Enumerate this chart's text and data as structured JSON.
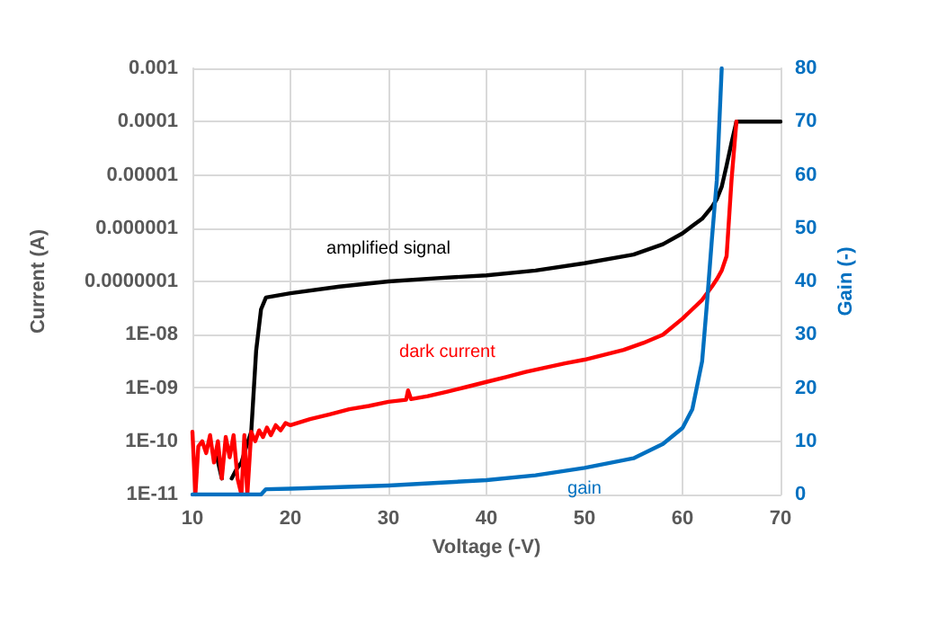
{
  "chart_data": {
    "type": "line",
    "xlabel": "Voltage (-V)",
    "ylabel": "Current (A)",
    "y2label": "Gain (-)",
    "log": "y",
    "grid": true,
    "marker": "none",
    "line_style": "solid",
    "xlim": [
      10,
      70
    ],
    "xticks": [
      10,
      20,
      30,
      40,
      50,
      60,
      70
    ],
    "ylim": [
      1e-11,
      0.001
    ],
    "yticks": [
      {
        "value": 1e-11,
        "label": "1E-11"
      },
      {
        "value": 1e-10,
        "label": "1E-10"
      },
      {
        "value": 1e-09,
        "label": "1E-09"
      },
      {
        "value": 1e-08,
        "label": "1E-08"
      },
      {
        "value": 1e-07,
        "label": "0.0000001"
      },
      {
        "value": 1e-06,
        "label": "0.000001"
      },
      {
        "value": 1e-05,
        "label": "0.00001"
      },
      {
        "value": 0.0001,
        "label": "0.0001"
      },
      {
        "value": 0.001,
        "label": "0.001"
      }
    ],
    "y2lim": [
      0,
      80
    ],
    "y2ticks": [
      0,
      10,
      20,
      30,
      40,
      50,
      60,
      70,
      80
    ],
    "series": [
      {
        "name": "amplified signal",
        "color": "#000000",
        "x": [
          12.5,
          13,
          13.5,
          14,
          14.5,
          15,
          15.5,
          16,
          16.5,
          17,
          17.5,
          20,
          25,
          30,
          35,
          40,
          45,
          50,
          55,
          58,
          60,
          61,
          62,
          63,
          63.5,
          64,
          64.5,
          65,
          65.5,
          70
        ],
        "values": [
          5e-11,
          2e-11,
          null,
          2e-11,
          3e-11,
          4e-11,
          8e-11,
          1.5e-10,
          5e-09,
          3e-08,
          5e-08,
          6e-08,
          8e-08,
          1e-07,
          1.15e-07,
          1.3e-07,
          1.6e-07,
          2.2e-07,
          3.2e-07,
          5e-07,
          8e-07,
          1.1e-06,
          1.5e-06,
          2.5e-06,
          3.5e-06,
          6e-06,
          1.5e-05,
          4e-05,
          0.0001,
          0.0001
        ]
      },
      {
        "name": "dark current",
        "color": "#ff0000",
        "x": [
          10,
          10.3,
          10.6,
          11,
          11.4,
          11.8,
          12.2,
          12.6,
          13,
          13.4,
          13.8,
          14.2,
          14.6,
          15,
          15.3,
          15.6,
          16,
          16.4,
          16.8,
          17.2,
          17.6,
          18,
          18.5,
          19,
          19.5,
          20,
          22,
          24,
          26,
          28,
          30,
          31.8,
          32,
          32.3,
          34,
          36,
          38,
          40,
          42,
          44,
          46,
          48,
          50,
          52,
          54,
          56,
          58,
          60,
          61,
          62,
          63,
          63.5,
          64,
          64.5,
          65,
          65.5
        ],
        "values": [
          1.5e-10,
          1e-11,
          8e-11,
          1e-10,
          6e-11,
          1.3e-10,
          4e-11,
          1e-10,
          2e-11,
          1.2e-10,
          5e-11,
          1.3e-10,
          2e-11,
          1e-11,
          1.3e-10,
          1e-11,
          1.5e-10,
          1e-10,
          1.6e-10,
          1.2e-10,
          1.8e-10,
          1.3e-10,
          2e-10,
          1.6e-10,
          2.2e-10,
          2e-10,
          2.6e-10,
          3.2e-10,
          4e-10,
          4.6e-10,
          5.5e-10,
          6e-10,
          9e-10,
          6.2e-10,
          7e-10,
          8.5e-10,
          1.05e-09,
          1.3e-09,
          1.6e-09,
          2e-09,
          2.4e-09,
          2.9e-09,
          3.4e-09,
          4.2e-09,
          5.2e-09,
          7e-09,
          1e-08,
          2e-08,
          3e-08,
          4.5e-08,
          8e-08,
          1.1e-07,
          1.6e-07,
          3e-07,
          8e-06,
          0.0001
        ]
      },
      {
        "name": "gain",
        "color": "#0070c0",
        "axis": "y2",
        "x": [
          10,
          17,
          17.5,
          20,
          25,
          30,
          35,
          40,
          45,
          50,
          55,
          58,
          60,
          61,
          62,
          62.5,
          63,
          63.5,
          64
        ],
        "values": [
          0,
          0,
          1,
          1.1,
          1.4,
          1.7,
          2.2,
          2.7,
          3.6,
          5,
          6.8,
          9.5,
          12.5,
          16,
          25,
          36,
          48,
          59,
          80
        ]
      }
    ]
  }
}
